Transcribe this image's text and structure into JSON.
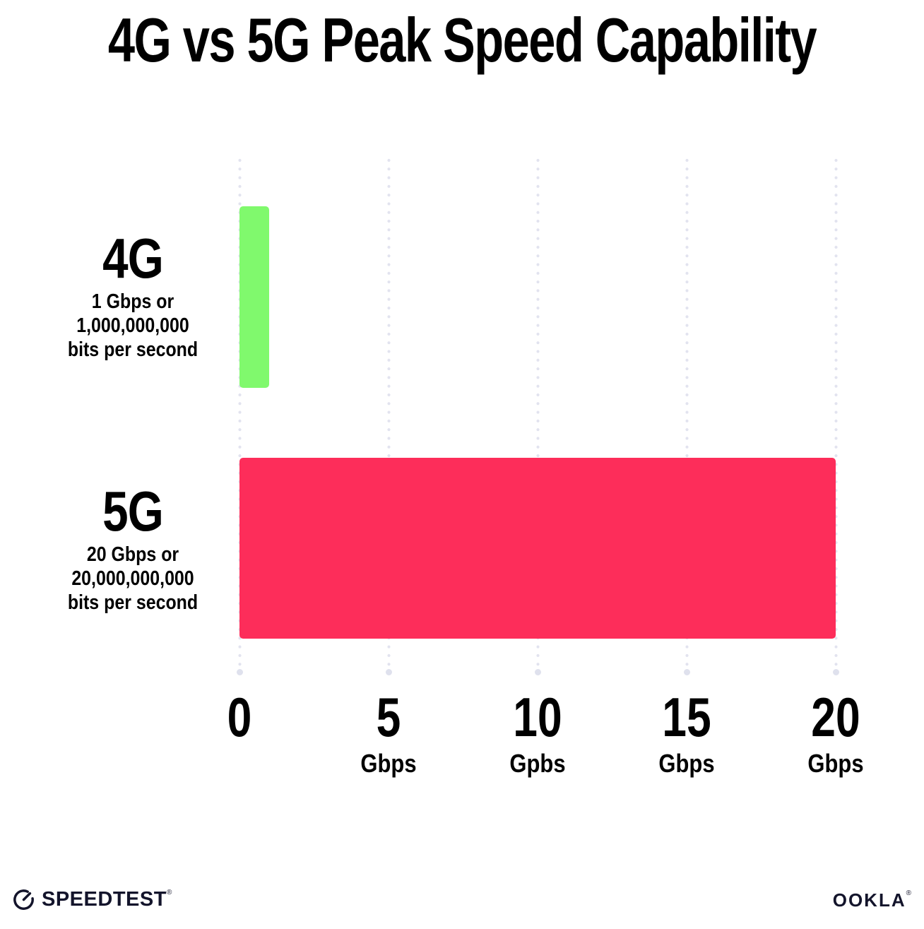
{
  "title": "4G vs 5G Peak Speed Capability",
  "chart_data": {
    "type": "bar",
    "orientation": "horizontal",
    "title": "4G vs 5G Peak Speed Capability",
    "categories": [
      "4G",
      "5G"
    ],
    "values": [
      1,
      20
    ],
    "value_unit": "Gbps",
    "bar_colors": [
      "#80F96D",
      "#FD2D5A"
    ],
    "category_sublabels": [
      [
        "1 Gbps or",
        "1,000,000,000",
        "bits per second"
      ],
      [
        "20 Gbps or",
        "20,000,000,000",
        "bits per second"
      ]
    ],
    "xlim": [
      0,
      20
    ],
    "x_ticks": [
      {
        "label": "0",
        "unit": ""
      },
      {
        "label": "5",
        "unit": "Gbps"
      },
      {
        "label": "10",
        "unit": "Gpbs"
      },
      {
        "label": "15",
        "unit": "Gbps"
      },
      {
        "label": "20",
        "unit": "Gbps"
      }
    ],
    "grid": "vertical dotted",
    "legend": "none"
  },
  "footer": {
    "speedtest_label": "SPEEDTEST",
    "speedtest_mark": "®",
    "ookla_label": "OOKLA",
    "ookla_mark": "®"
  },
  "colors": {
    "bar_4g": "#80F96D",
    "bar_5g": "#FD2D5A",
    "gridline_dot": "#E2E3EF",
    "text": "#000000",
    "footer_text": "#13142B"
  }
}
